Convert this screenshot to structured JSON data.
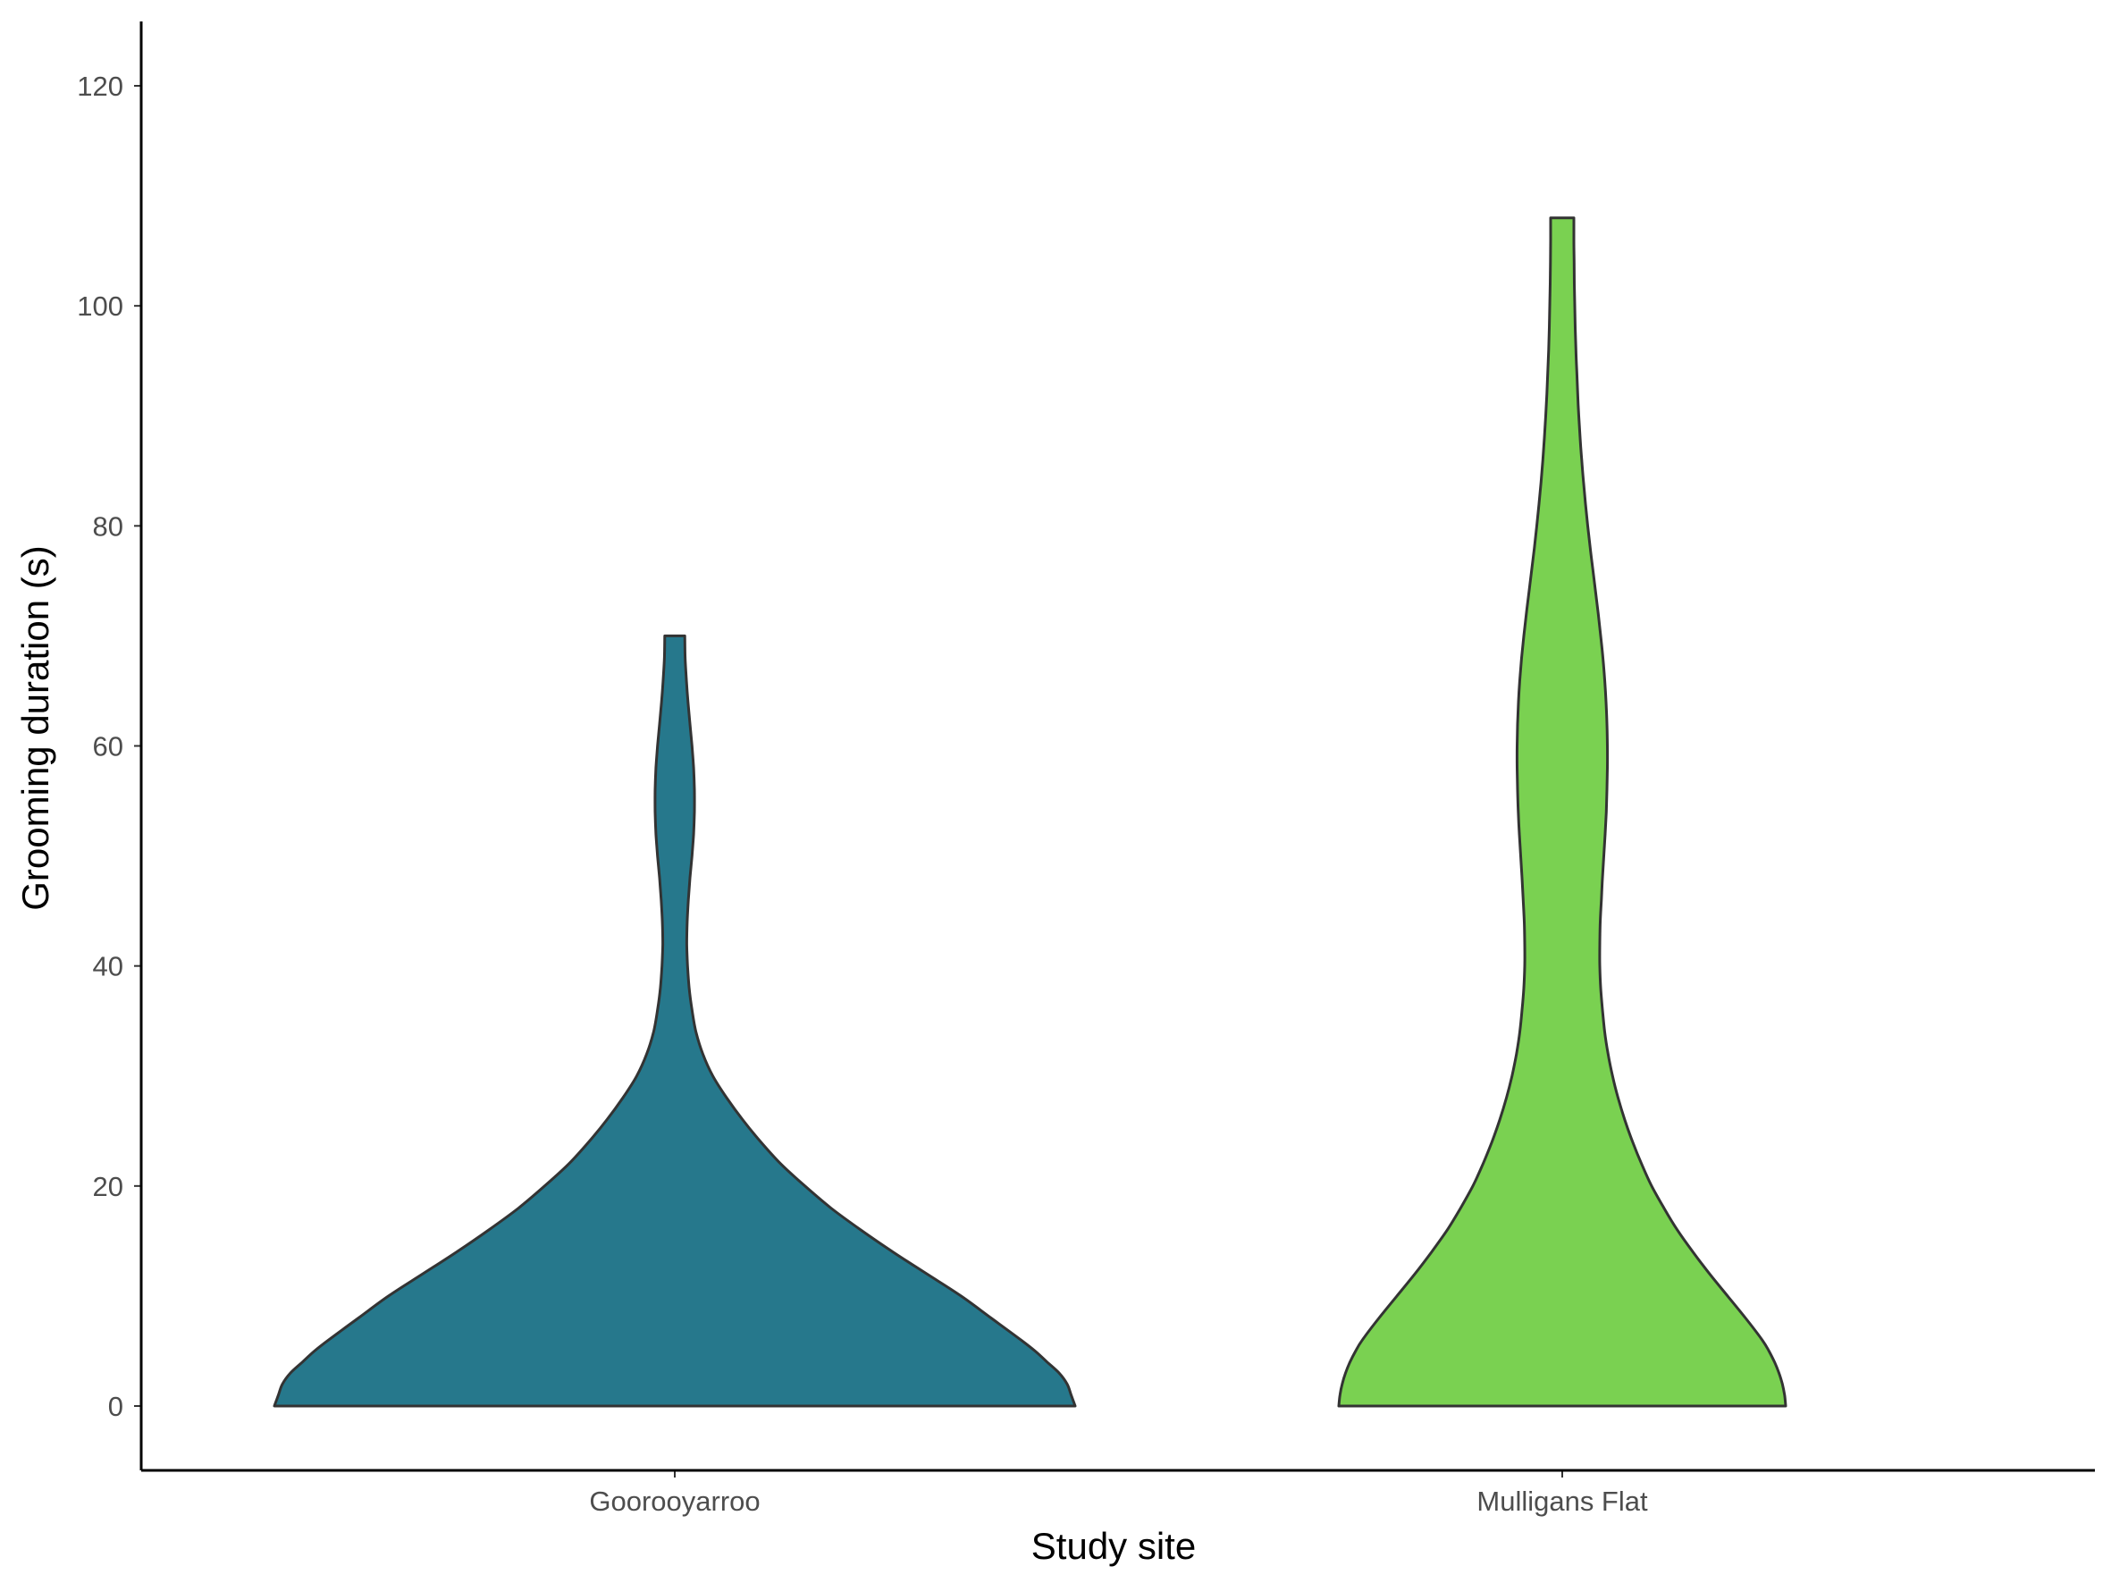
{
  "chart_data": {
    "type": "violin",
    "title": "",
    "xlabel": "Study site",
    "ylabel": "Grooming duration (s)",
    "categories": [
      "Goorooyarroo",
      "Mulligans Flat"
    ],
    "yticks": [
      0,
      20,
      40,
      60,
      80,
      100,
      120
    ],
    "ylim": [
      -6,
      126
    ],
    "grid": false,
    "legend": "none",
    "series": [
      {
        "category": "Goorooyarroo",
        "color": "#26788C",
        "range": [
          0,
          70
        ],
        "density": [
          [
            0,
            1.0
          ],
          [
            1,
            0.99
          ],
          [
            2,
            0.98
          ],
          [
            3,
            0.96
          ],
          [
            4,
            0.93
          ],
          [
            5,
            0.9
          ],
          [
            6,
            0.865
          ],
          [
            8,
            0.79
          ],
          [
            10,
            0.715
          ],
          [
            12,
            0.63
          ],
          [
            14,
            0.545
          ],
          [
            16,
            0.465
          ],
          [
            18,
            0.39
          ],
          [
            20,
            0.325
          ],
          [
            22,
            0.265
          ],
          [
            24,
            0.215
          ],
          [
            26,
            0.17
          ],
          [
            28,
            0.13
          ],
          [
            30,
            0.095
          ],
          [
            32,
            0.07
          ],
          [
            34,
            0.053
          ],
          [
            36,
            0.043
          ],
          [
            38,
            0.036
          ],
          [
            40,
            0.032
          ],
          [
            42,
            0.03
          ],
          [
            44,
            0.031
          ],
          [
            46,
            0.034
          ],
          [
            48,
            0.038
          ],
          [
            50,
            0.043
          ],
          [
            52,
            0.047
          ],
          [
            54,
            0.049
          ],
          [
            56,
            0.049
          ],
          [
            58,
            0.047
          ],
          [
            60,
            0.043
          ],
          [
            62,
            0.038
          ],
          [
            64,
            0.033
          ],
          [
            66,
            0.029
          ],
          [
            68,
            0.026
          ],
          [
            70,
            0.025
          ]
        ]
      },
      {
        "category": "Mulligans Flat",
        "color": "#7AD151",
        "range": [
          0,
          108
        ],
        "density": [
          [
            0,
            1.0
          ],
          [
            1,
            0.995
          ],
          [
            2,
            0.985
          ],
          [
            3,
            0.97
          ],
          [
            4,
            0.95
          ],
          [
            5,
            0.925
          ],
          [
            6,
            0.895
          ],
          [
            8,
            0.82
          ],
          [
            10,
            0.74
          ],
          [
            12,
            0.66
          ],
          [
            14,
            0.585
          ],
          [
            16,
            0.515
          ],
          [
            18,
            0.455
          ],
          [
            20,
            0.4
          ],
          [
            22,
            0.355
          ],
          [
            24,
            0.315
          ],
          [
            26,
            0.28
          ],
          [
            28,
            0.25
          ],
          [
            30,
            0.225
          ],
          [
            32,
            0.205
          ],
          [
            34,
            0.19
          ],
          [
            36,
            0.18
          ],
          [
            38,
            0.172
          ],
          [
            40,
            0.168
          ],
          [
            42,
            0.168
          ],
          [
            44,
            0.17
          ],
          [
            46,
            0.175
          ],
          [
            48,
            0.18
          ],
          [
            50,
            0.186
          ],
          [
            52,
            0.192
          ],
          [
            54,
            0.197
          ],
          [
            56,
            0.2
          ],
          [
            58,
            0.202
          ],
          [
            60,
            0.202
          ],
          [
            62,
            0.2
          ],
          [
            64,
            0.196
          ],
          [
            66,
            0.19
          ],
          [
            68,
            0.182
          ],
          [
            70,
            0.172
          ],
          [
            72,
            0.161
          ],
          [
            74,
            0.149
          ],
          [
            76,
            0.137
          ],
          [
            78,
            0.125
          ],
          [
            80,
            0.114
          ],
          [
            82,
            0.104
          ],
          [
            84,
            0.095
          ],
          [
            86,
            0.087
          ],
          [
            88,
            0.08
          ],
          [
            90,
            0.074
          ],
          [
            92,
            0.069
          ],
          [
            94,
            0.065
          ],
          [
            96,
            0.061
          ],
          [
            98,
            0.058
          ],
          [
            100,
            0.056
          ],
          [
            102,
            0.054
          ],
          [
            104,
            0.053
          ],
          [
            106,
            0.052
          ],
          [
            108,
            0.052
          ]
        ]
      }
    ]
  }
}
